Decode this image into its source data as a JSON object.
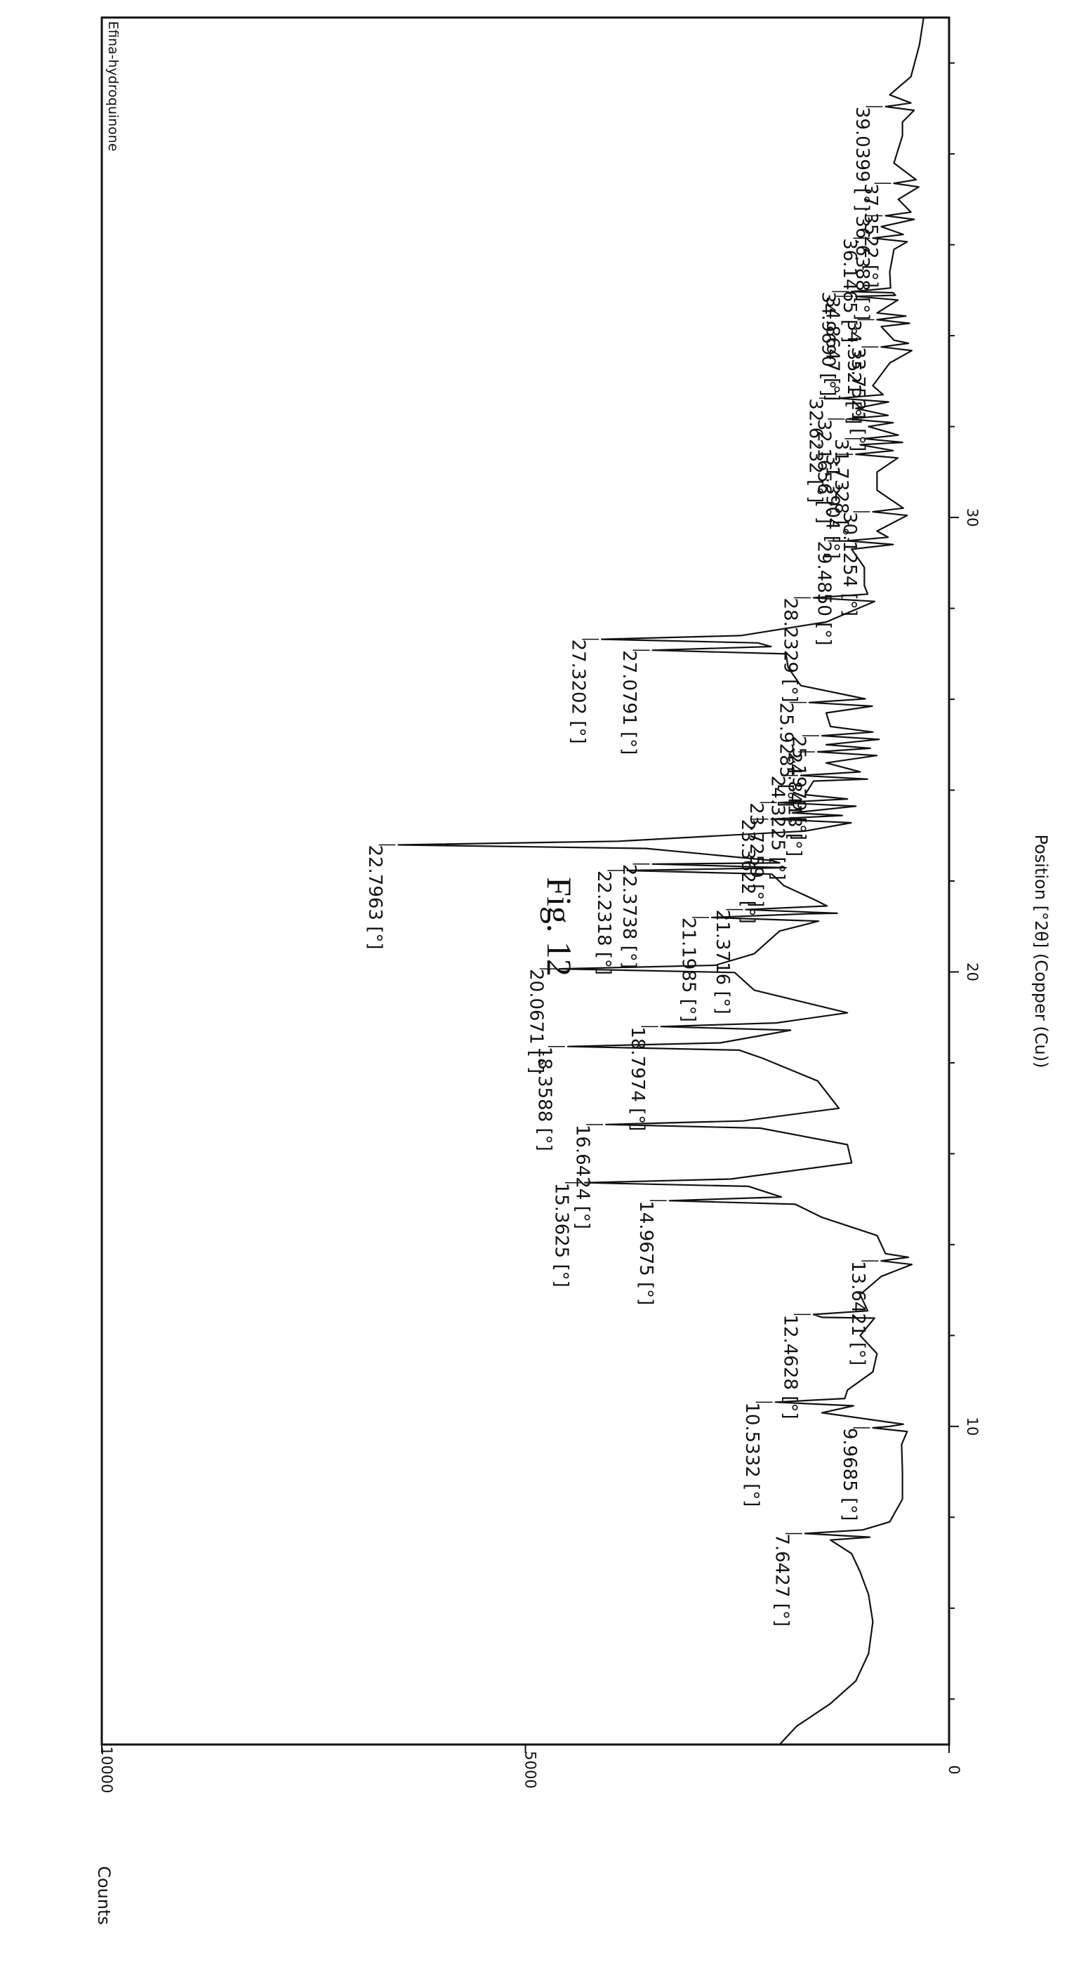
{
  "figure": {
    "title": "Fig. 12"
  },
  "chart_data": {
    "type": "line",
    "title": "",
    "sample_label": "Efina-hydroquinone",
    "xlabel": "Position [°2θ] (Copper (Cu))",
    "ylabel": "Counts",
    "xlim": [
      3,
      41
    ],
    "ylim": [
      0,
      10000
    ],
    "x_ticks": [
      10,
      20,
      30
    ],
    "y_ticks": [
      0,
      5000,
      10000
    ],
    "orientation": "rotated 90° clockwise",
    "baseline": [
      [
        3.0,
        2000
      ],
      [
        3.4,
        1800
      ],
      [
        3.9,
        1400
      ],
      [
        4.4,
        1100
      ],
      [
        5.0,
        950
      ],
      [
        5.7,
        900
      ],
      [
        6.3,
        950
      ],
      [
        6.8,
        1050
      ],
      [
        7.2,
        1150
      ],
      [
        7.5,
        1400
      ],
      [
        7.9,
        700
      ],
      [
        8.4,
        550
      ],
      [
        9.0,
        550
      ],
      [
        9.6,
        560
      ],
      [
        10.0,
        700
      ],
      [
        10.3,
        1500
      ],
      [
        10.8,
        1200
      ],
      [
        11.2,
        900
      ],
      [
        11.6,
        850
      ],
      [
        12.0,
        1050
      ],
      [
        12.4,
        1500
      ],
      [
        12.9,
        1050
      ],
      [
        13.3,
        800
      ],
      [
        13.8,
        750
      ],
      [
        14.2,
        850
      ],
      [
        14.6,
        1500
      ],
      [
        15.8,
        1150
      ],
      [
        16.2,
        1200
      ],
      [
        17.0,
        1300
      ],
      [
        17.6,
        1550
      ],
      [
        18.1,
        2200
      ],
      [
        19.1,
        1200
      ],
      [
        19.6,
        2300
      ],
      [
        20.4,
        2300
      ],
      [
        20.9,
        2000
      ],
      [
        21.6,
        1600
      ],
      [
        21.9,
        1950
      ],
      [
        22.4,
        2000
      ],
      [
        23.1,
        1700
      ],
      [
        23.5,
        1850
      ],
      [
        23.9,
        1700
      ],
      [
        24.2,
        1600
      ],
      [
        24.6,
        1450
      ],
      [
        25.0,
        1450
      ],
      [
        25.4,
        1400
      ],
      [
        25.7,
        1450
      ],
      [
        26.3,
        1750
      ],
      [
        26.7,
        1900
      ],
      [
        27.7,
        1450
      ],
      [
        28.5,
        1000
      ],
      [
        28.9,
        1000
      ],
      [
        29.3,
        1150
      ],
      [
        29.7,
        850
      ],
      [
        30.6,
        850
      ],
      [
        31.0,
        850
      ],
      [
        31.6,
        1050
      ],
      [
        32.0,
        950
      ],
      [
        32.4,
        1100
      ],
      [
        32.9,
        900
      ],
      [
        33.4,
        700
      ],
      [
        33.9,
        650
      ],
      [
        34.2,
        800
      ],
      [
        34.5,
        850
      ],
      [
        35.0,
        950
      ],
      [
        35.4,
        700
      ],
      [
        35.9,
        650
      ],
      [
        36.4,
        800
      ],
      [
        37.0,
        600
      ],
      [
        37.8,
        650
      ],
      [
        38.4,
        550
      ],
      [
        38.7,
        550
      ],
      [
        39.3,
        700
      ],
      [
        39.7,
        450
      ],
      [
        40.4,
        350
      ],
      [
        41.0,
        300
      ]
    ],
    "peaks": [
      {
        "label": "7.6427 [°]",
        "x": 7.6427,
        "y": 1700
      },
      {
        "label": "9.9685 [°]",
        "x": 9.9685,
        "y": 900
      },
      {
        "label": "10.5332 [°]",
        "x": 10.5332,
        "y": 2050
      },
      {
        "label": "12.4628 [°]",
        "x": 12.4628,
        "y": 1600
      },
      {
        "label": "13.6421 [°]",
        "x": 13.6421,
        "y": 800
      },
      {
        "label": "14.9675 [°]",
        "x": 14.9675,
        "y": 3300
      },
      {
        "label": "15.3625 [°]",
        "x": 15.3625,
        "y": 4300
      },
      {
        "label": "16.6424 [°]",
        "x": 16.6424,
        "y": 4050
      },
      {
        "label": "18.3588 [°]",
        "x": 18.3588,
        "y": 4500
      },
      {
        "label": "18.7974 [°]",
        "x": 18.7974,
        "y": 3400
      },
      {
        "label": "20.0671 [°]",
        "x": 20.0671,
        "y": 4600
      },
      {
        "label": "21.1985 [°]",
        "x": 21.1985,
        "y": 2800
      },
      {
        "label": "21.3716 [°]",
        "x": 21.3716,
        "y": 2400
      },
      {
        "label": "22.2318 [°]",
        "x": 22.2318,
        "y": 3800
      },
      {
        "label": "22.3738 [°]",
        "x": 22.3738,
        "y": 3500
      },
      {
        "label": "22.7963 [°]",
        "x": 22.7963,
        "y": 6500
      },
      {
        "label": "23.3622 [°]",
        "x": 23.3622,
        "y": 2100
      },
      {
        "label": "23.7259 [°]",
        "x": 23.7259,
        "y": 2000
      },
      {
        "label": "24.3225 [°]",
        "x": 24.3225,
        "y": 1750
      },
      {
        "label": "24.8418 [°]",
        "x": 24.8418,
        "y": 1550
      },
      {
        "label": "25.1979 [°]",
        "x": 25.1979,
        "y": 1500
      },
      {
        "label": "25.9285 [°]",
        "x": 25.9285,
        "y": 1650
      },
      {
        "label": "27.0791 [°]",
        "x": 27.0791,
        "y": 3500
      },
      {
        "label": "27.3202 [°]",
        "x": 27.3202,
        "y": 4100
      },
      {
        "label": "28.2329 [°]",
        "x": 28.2329,
        "y": 1600
      },
      {
        "label": "29.4850 [°]",
        "x": 29.485,
        "y": 1200
      },
      {
        "label": "30.1254 [°]",
        "x": 30.1254,
        "y": 900
      },
      {
        "label": "31.3904 [°]",
        "x": 31.3904,
        "y": 1100
      },
      {
        "label": "31.7328 [°]",
        "x": 31.7328,
        "y": 1000
      },
      {
        "label": "32.1656 [°]",
        "x": 32.1656,
        "y": 1200
      },
      {
        "label": "32.6232 [°]",
        "x": 32.6232,
        "y": 1300
      },
      {
        "label": "33.7521 [°]",
        "x": 33.7521,
        "y": 800
      },
      {
        "label": "34.3521 [°]",
        "x": 34.3521,
        "y": 850
      },
      {
        "label": "34.8647 [°]",
        "x": 34.8647,
        "y": 1100
      },
      {
        "label": "34.9690 [°]",
        "x": 34.969,
        "y": 1150
      },
      {
        "label": "36.1465 [°]",
        "x": 36.1465,
        "y": 900
      },
      {
        "label": "36.6388 [°]",
        "x": 36.6388,
        "y": 750
      },
      {
        "label": "37.3522 [°]",
        "x": 37.3522,
        "y": 650
      },
      {
        "label": "39.0399 [°]",
        "x": 39.0399,
        "y": 750
      }
    ]
  }
}
